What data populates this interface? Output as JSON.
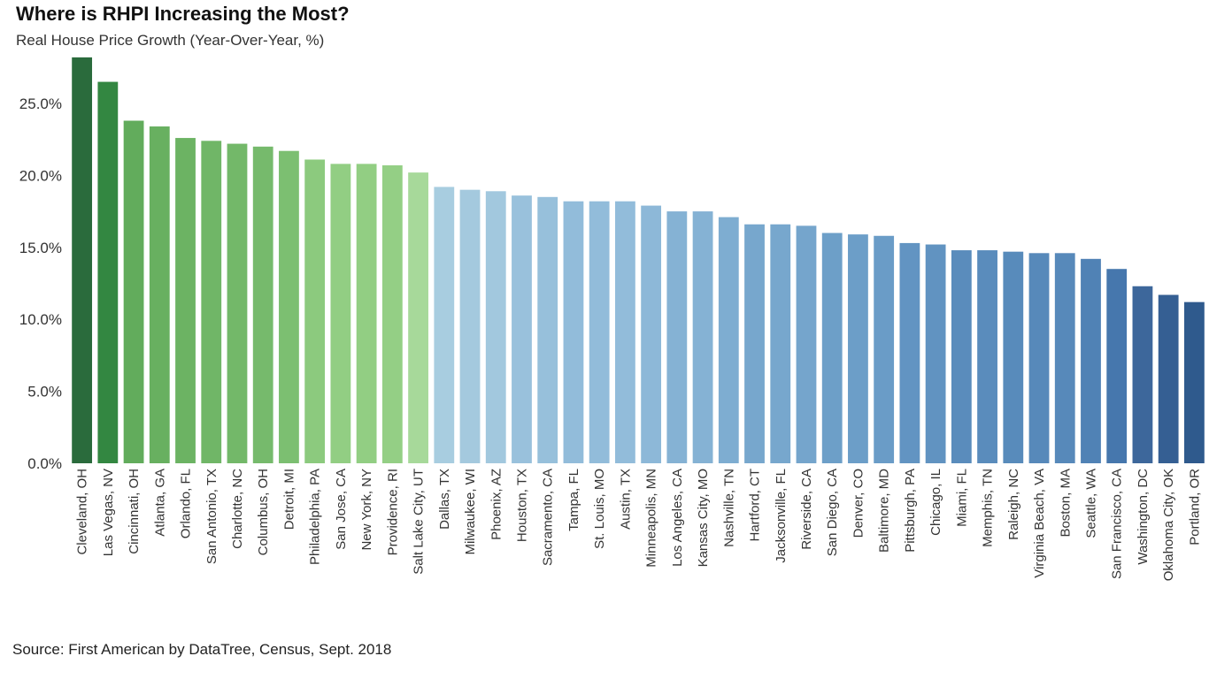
{
  "chart_data": {
    "type": "bar",
    "title": "Where is RHPI Increasing the Most?",
    "subtitle": "Real House Price Growth (Year-Over-Year, %)",
    "source": "Source: First American by DataTree, Census, Sept. 2018",
    "xlabel": "",
    "ylabel": "",
    "ylim": [
      0,
      28.5
    ],
    "yticks": [
      0,
      5,
      10,
      15,
      20,
      25
    ],
    "ytick_labels": [
      "0.0%",
      "5.0%",
      "10.0%",
      "15.0%",
      "20.0%",
      "25.0%"
    ],
    "grid": false,
    "categories": [
      "Cleveland, OH",
      "Las Vegas, NV",
      "Cincinnati, OH",
      "Atlanta, GA",
      "Orlando, FL",
      "San Antonio, TX",
      "Charlotte, NC",
      "Columbus, OH",
      "Detroit, MI",
      "Philadelphia, PA",
      "San Jose, CA",
      "New York, NY",
      "Providence, RI",
      "Salt Lake City, UT",
      "Dallas, TX",
      "Milwaukee, WI",
      "Phoenix, AZ",
      "Houston, TX",
      "Sacramento, CA",
      "Tampa, FL",
      "St. Louis, MO",
      "Austin, TX",
      "Minneapolis, MN",
      "Los Angeles, CA",
      "Kansas City, MO",
      "Nashville, TN",
      "Hartford, CT",
      "Jacksonville, FL",
      "Riverside, CA",
      "San Diego, CA",
      "Denver, CO",
      "Baltimore, MD",
      "Pittsburgh, PA",
      "Chicago, IL",
      "Miami, FL",
      "Memphis, TN",
      "Raleigh, NC",
      "Virginia Beach, VA",
      "Boston, MA",
      "Seattle, WA",
      "San Francisco, CA",
      "Washington, DC",
      "Oklahoma City, OK",
      "Portland, OR"
    ],
    "values": [
      28.2,
      26.5,
      23.8,
      23.4,
      22.6,
      22.4,
      22.2,
      22.0,
      21.7,
      21.1,
      20.8,
      20.8,
      20.7,
      20.2,
      19.2,
      19.0,
      18.9,
      18.6,
      18.5,
      18.2,
      18.2,
      18.2,
      17.9,
      17.5,
      17.5,
      17.1,
      16.6,
      16.6,
      16.5,
      16.0,
      15.9,
      15.8,
      15.3,
      15.2,
      14.8,
      14.8,
      14.7,
      14.6,
      14.6,
      14.2,
      13.5,
      12.3,
      11.7,
      11.2
    ],
    "colors": [
      "#2a6b3c",
      "#338741",
      "#62ac5c",
      "#68b060",
      "#6cb363",
      "#70b667",
      "#73b869",
      "#76ba6c",
      "#7cbf71",
      "#8cca7e",
      "#92ce83",
      "#92ce83",
      "#94cf85",
      "#a7d99a",
      "#a8cde0",
      "#a4c9de",
      "#a2c8de",
      "#99c1dc",
      "#97c0db",
      "#92bcda",
      "#92bcda",
      "#92bcda",
      "#8db8d8",
      "#85b2d4",
      "#85b2d4",
      "#7eadd1",
      "#77a7cd",
      "#77a7cd",
      "#75a5cc",
      "#6d9fc8",
      "#6c9ec8",
      "#6a9cc7",
      "#6294c2",
      "#6193c1",
      "#5a8cbc",
      "#5a8cbc",
      "#588bbb",
      "#5789ba",
      "#5789ba",
      "#5082b5",
      "#4677ad",
      "#3d679b",
      "#355f93",
      "#2f5a8d"
    ]
  }
}
